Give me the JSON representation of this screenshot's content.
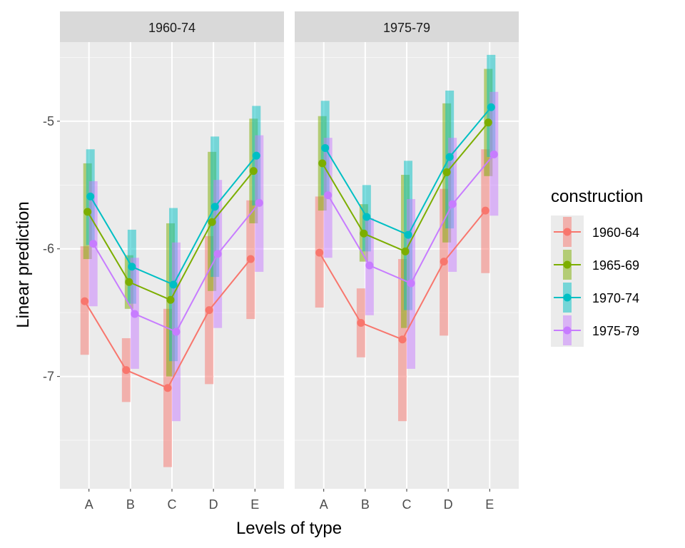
{
  "chart_data": {
    "type": "line",
    "xlabel": "Levels of type",
    "ylabel": "Linear prediction",
    "categories": [
      "A",
      "B",
      "C",
      "D",
      "E"
    ],
    "y_ticks": [
      -7,
      -6,
      -5
    ],
    "ylim": [
      -7.88,
      -4.38
    ],
    "grid": true,
    "legend": {
      "title": "construction",
      "position": "right",
      "entries": [
        "1960-64",
        "1965-69",
        "1970-74",
        "1975-79"
      ]
    },
    "colors": {
      "1960-64": "#F8766D",
      "1965-69": "#7CAE00",
      "1970-74": "#00BFC4",
      "1975-79": "#C77CFF",
      "panel_bg": "#EBEBEB",
      "strip_bg": "#D9D9D9"
    },
    "facets": [
      {
        "label": "1960-74",
        "series": [
          {
            "name": "1960-64",
            "values": [
              -6.41,
              -6.95,
              -7.09,
              -6.48,
              -6.08
            ],
            "lower": [
              -6.83,
              -7.2,
              -7.71,
              -7.06,
              -6.55
            ],
            "upper": [
              -5.98,
              -6.7,
              -6.47,
              -5.9,
              -5.62
            ]
          },
          {
            "name": "1965-69",
            "values": [
              -5.71,
              -6.26,
              -6.4,
              -5.79,
              -5.39
            ],
            "lower": [
              -6.08,
              -6.47,
              -7.0,
              -6.33,
              -5.8
            ],
            "upper": [
              -5.33,
              -6.05,
              -5.8,
              -5.24,
              -4.98
            ]
          },
          {
            "name": "1970-74",
            "values": [
              -5.59,
              -6.14,
              -6.28,
              -5.67,
              -5.27
            ],
            "lower": [
              -5.97,
              -6.43,
              -6.88,
              -6.22,
              -5.66
            ],
            "upper": [
              -5.22,
              -5.85,
              -5.68,
              -5.12,
              -4.88
            ]
          },
          {
            "name": "1975-79",
            "values": [
              -5.96,
              -6.51,
              -6.65,
              -6.04,
              -5.64
            ],
            "lower": [
              -6.45,
              -6.94,
              -7.35,
              -6.62,
              -6.18
            ],
            "upper": [
              -5.47,
              -6.07,
              -5.95,
              -5.46,
              -5.11
            ]
          }
        ]
      },
      {
        "label": "1975-79",
        "series": [
          {
            "name": "1960-64",
            "values": [
              -6.03,
              -6.58,
              -6.71,
              -6.1,
              -5.7
            ],
            "lower": [
              -6.46,
              -6.85,
              -7.35,
              -6.68,
              -6.19
            ],
            "upper": [
              -5.59,
              -6.31,
              -6.08,
              -5.53,
              -5.22
            ]
          },
          {
            "name": "1965-69",
            "values": [
              -5.33,
              -5.88,
              -6.02,
              -5.4,
              -5.01
            ],
            "lower": [
              -5.7,
              -6.1,
              -6.62,
              -5.95,
              -5.43
            ],
            "upper": [
              -4.96,
              -5.65,
              -5.42,
              -4.86,
              -4.59
            ]
          },
          {
            "name": "1970-74",
            "values": [
              -5.21,
              -5.75,
              -5.89,
              -5.28,
              -4.89
            ],
            "lower": [
              -5.58,
              -6.02,
              -6.48,
              -5.84,
              -5.28
            ],
            "upper": [
              -4.84,
              -5.5,
              -5.31,
              -4.76,
              -4.48
            ]
          },
          {
            "name": "1975-79",
            "values": [
              -5.58,
              -6.13,
              -6.27,
              -5.65,
              -5.26
            ],
            "lower": [
              -6.07,
              -6.52,
              -6.94,
              -6.18,
              -5.74
            ],
            "upper": [
              -5.13,
              -5.76,
              -5.61,
              -5.13,
              -4.77
            ]
          }
        ]
      }
    ]
  }
}
